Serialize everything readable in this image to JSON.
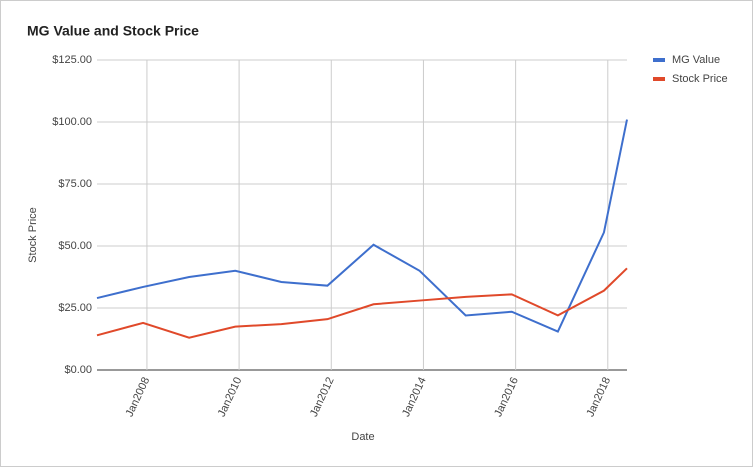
{
  "chart_data": {
    "type": "line",
    "title": "MG Value and Stock Price",
    "x_label": "Date",
    "y_label": "Stock Price",
    "x": [
      "2006-12",
      "2007-12",
      "2008-12",
      "2009-12",
      "2010-12",
      "2011-12",
      "2012-12",
      "2013-12",
      "2014-12",
      "2015-12",
      "2016-12",
      "2017-12",
      "2018-06"
    ],
    "series": [
      {
        "name": "MG Value",
        "color": "#3e6fcd",
        "values": [
          29,
          33.5,
          37.5,
          40,
          35.5,
          34,
          50.5,
          40,
          22,
          23.5,
          15.5,
          55.5,
          101
        ]
      },
      {
        "name": "Stock Price",
        "color": "#e0492a",
        "values": [
          14,
          19,
          13,
          17.5,
          18.5,
          20.5,
          26.5,
          28,
          29.5,
          30.5,
          22,
          32,
          41
        ]
      }
    ],
    "xlim": [
      "2006-12",
      "2018-06"
    ],
    "xticks": [
      {
        "value": "2008-01",
        "label": "Jan2008"
      },
      {
        "value": "2010-01",
        "label": "Jan2010"
      },
      {
        "value": "2012-01",
        "label": "Jan2012"
      },
      {
        "value": "2014-01",
        "label": "Jan2014"
      },
      {
        "value": "2016-01",
        "label": "Jan2016"
      },
      {
        "value": "2018-01",
        "label": "Jan2018"
      }
    ],
    "ylim": [
      0,
      125
    ],
    "yticks": [
      {
        "value": 0,
        "label": "$0.00"
      },
      {
        "value": 25,
        "label": "$25.00"
      },
      {
        "value": 50,
        "label": "$50.00"
      },
      {
        "value": 75,
        "label": "$75.00"
      },
      {
        "value": 100,
        "label": "$100.00"
      },
      {
        "value": 125,
        "label": "$125.00"
      }
    ],
    "grid": true,
    "legend": "right"
  }
}
